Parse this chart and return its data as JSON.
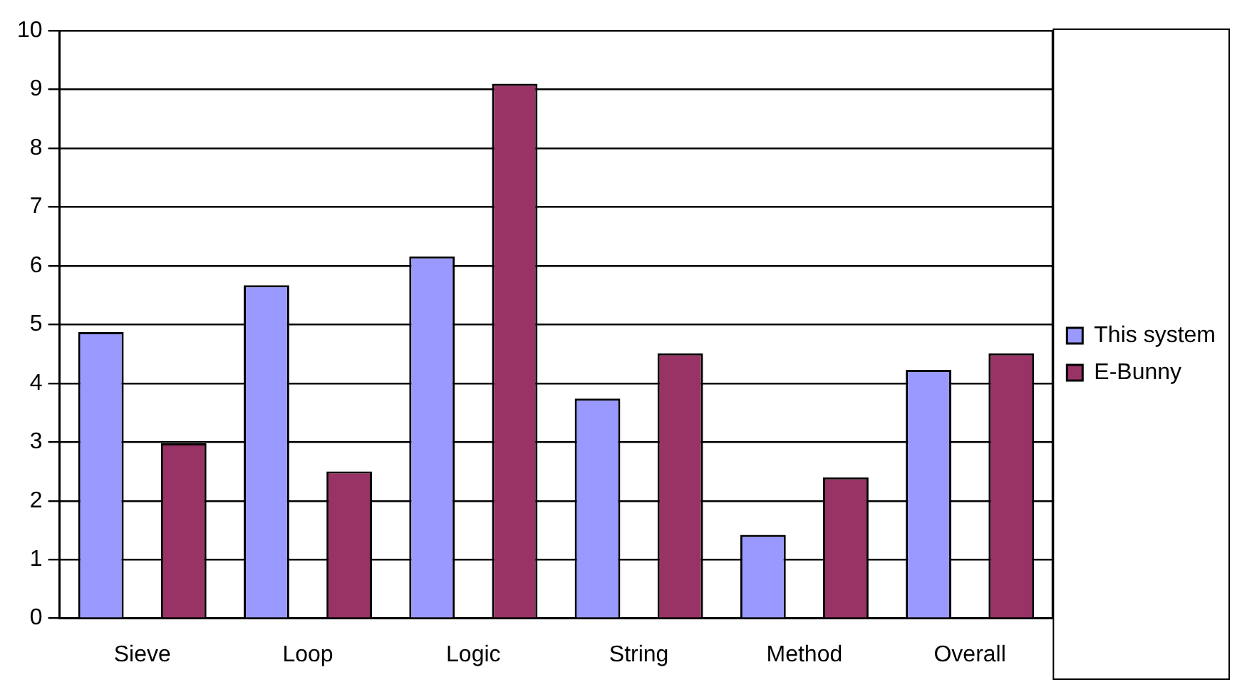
{
  "chart_data": {
    "type": "bar",
    "categories": [
      "Sieve",
      "Loop",
      "Logic",
      "String",
      "Method",
      "Overall"
    ],
    "series": [
      {
        "name": "This system",
        "color": "#9999ff",
        "values": [
          4.87,
          5.67,
          6.16,
          3.74,
          1.42,
          4.23
        ]
      },
      {
        "name": "E-Bunny",
        "color": "#993366",
        "values": [
          2.98,
          2.5,
          9.1,
          4.51,
          2.4,
          4.51
        ]
      }
    ],
    "ylim": [
      0,
      10
    ],
    "yticks": [
      0,
      1,
      2,
      3,
      4,
      5,
      6,
      7,
      8,
      9,
      10
    ],
    "grid": "y",
    "legend": "right"
  }
}
